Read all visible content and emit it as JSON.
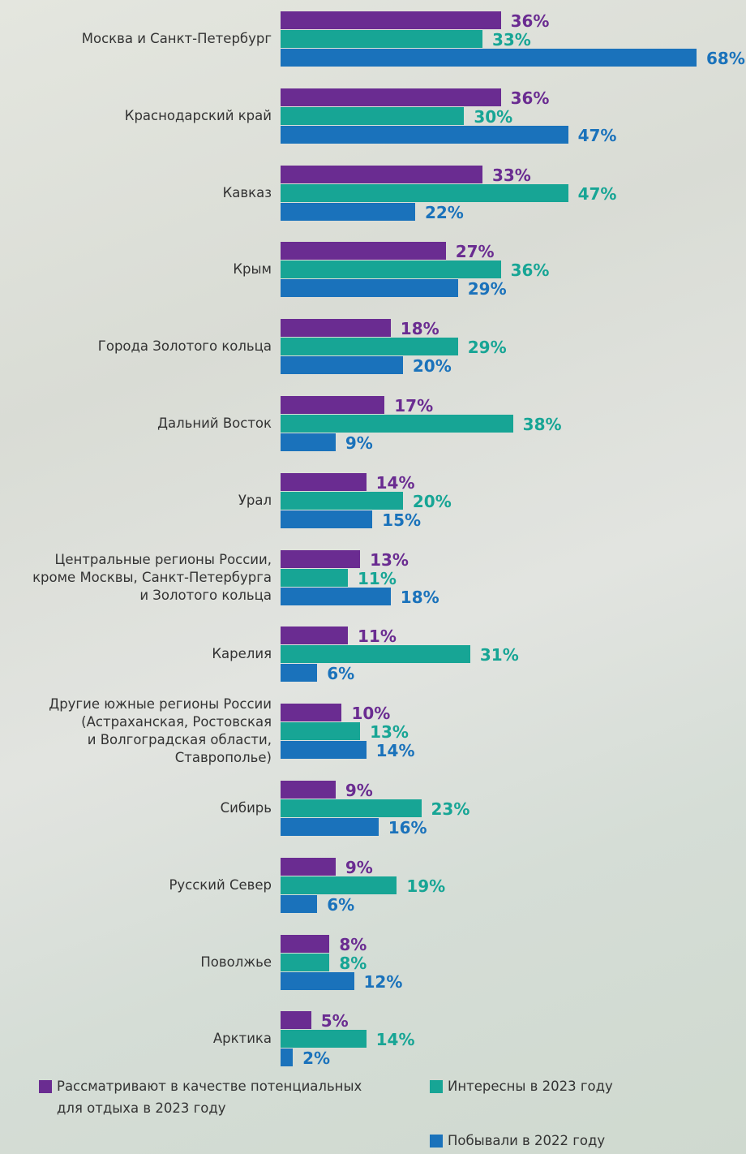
{
  "chart_data": {
    "type": "bar",
    "orientation": "horizontal",
    "categories": [
      "Москва и Санкт-Петербург",
      "Краснодарский край",
      "Кавказ",
      "Крым",
      "Города Золотого кольца",
      "Дальний Восток",
      "Урал",
      "Центральные регионы России,\nкроме Москвы, Санкт-Петербурга\nи Золотого кольца",
      "Карелия",
      "Другие южные регионы России\n(Астраханская, Ростовская\nи Волгоградская области,\nСтаврополье)",
      "Сибирь",
      "Русский Север",
      "Поволжье",
      "Арктика"
    ],
    "series": [
      {
        "name": "Рассматривают в качестве потенциальных\nдля отдыха в 2023 году",
        "color": "#6a2c91",
        "values": [
          36,
          36,
          33,
          27,
          18,
          17,
          14,
          13,
          11,
          10,
          9,
          9,
          8,
          5
        ],
        "value_labels": [
          "36%",
          "36%",
          "33%",
          "27%",
          "18%",
          "17%",
          "14%",
          "13%",
          "11%",
          "10%",
          "9%",
          "9%",
          "8%",
          "5%"
        ]
      },
      {
        "name": "Интересны в 2023 году",
        "color": "#17a595",
        "values": [
          33,
          30,
          47,
          36,
          29,
          38,
          20,
          11,
          31,
          13,
          23,
          19,
          8,
          14
        ],
        "value_labels": [
          "33%",
          "30%",
          "47%",
          "36%",
          "29%",
          "38%",
          "20%",
          "11%",
          "31%",
          "13%",
          "23%",
          "19%",
          "8%",
          "14%"
        ]
      },
      {
        "name": "Побывали в 2022 году",
        "color": "#1a72bb",
        "values": [
          68,
          47,
          22,
          29,
          20,
          9,
          15,
          18,
          6,
          14,
          16,
          6,
          12,
          2
        ],
        "value_labels": [
          "68%",
          "47%",
          "22%",
          "29%",
          "20%",
          "9%",
          "15%",
          "18%",
          "6%",
          "14%",
          "16%",
          "6%",
          "12%",
          "2%"
        ]
      }
    ]
  }
}
